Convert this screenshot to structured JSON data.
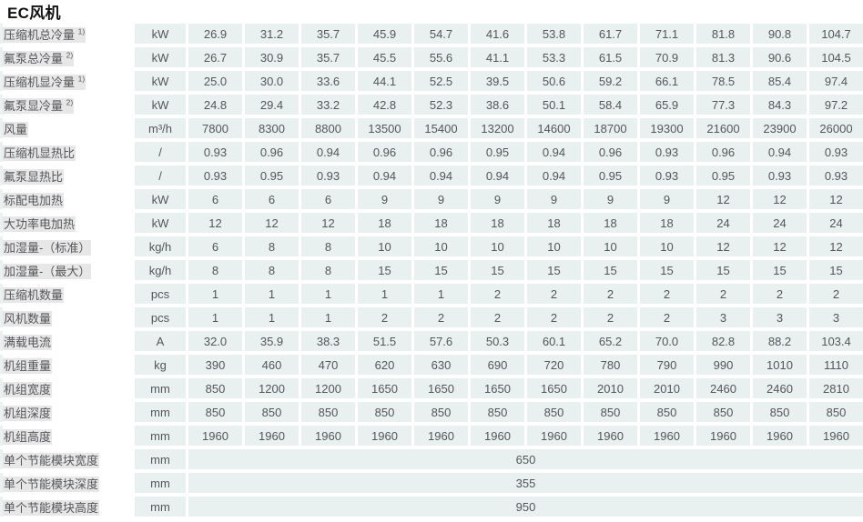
{
  "title": "EC风机",
  "colors": {
    "page_bg": "#ffffff",
    "cell_bg": "#e8f0f0",
    "cell_text": "#54565a",
    "label_text": "#4d4f52",
    "title_text": "#121212",
    "label_matte": "#e7e7e7"
  },
  "table": {
    "column_count": 12,
    "rows": [
      {
        "label": "压缩机总冷量",
        "sup": "1)",
        "unit": "kW",
        "values": [
          "26.9",
          "31.2",
          "35.7",
          "45.9",
          "54.7",
          "41.6",
          "53.8",
          "61.7",
          "71.1",
          "81.8",
          "90.8",
          "104.7"
        ]
      },
      {
        "label": "氟泵总冷量",
        "sup": "2)",
        "unit": "kW",
        "values": [
          "26.7",
          "30.9",
          "35.7",
          "45.5",
          "55.6",
          "41.1",
          "53.3",
          "61.5",
          "70.9",
          "81.3",
          "90.6",
          "104.5"
        ]
      },
      {
        "label": "压缩机显冷量",
        "sup": "1)",
        "unit": "kW",
        "values": [
          "25.0",
          "30.0",
          "33.6",
          "44.1",
          "52.5",
          "39.5",
          "50.6",
          "59.2",
          "66.1",
          "78.5",
          "85.4",
          "97.4"
        ]
      },
      {
        "label": "氟泵显冷量",
        "sup": "2)",
        "unit": "kW",
        "values": [
          "24.8",
          "29.4",
          "33.2",
          "42.8",
          "52.3",
          "38.6",
          "50.1",
          "58.4",
          "65.9",
          "77.3",
          "84.3",
          "97.2"
        ]
      },
      {
        "label": "风量",
        "unit": "m³/h",
        "values": [
          "7800",
          "8300",
          "8800",
          "13500",
          "15400",
          "13200",
          "14600",
          "18700",
          "19300",
          "21600",
          "23900",
          "26000"
        ]
      },
      {
        "label": "压缩机显热比",
        "unit": "/",
        "values": [
          "0.93",
          "0.96",
          "0.94",
          "0.96",
          "0.96",
          "0.95",
          "0.94",
          "0.96",
          "0.93",
          "0.96",
          "0.94",
          "0.93"
        ]
      },
      {
        "label": "氟泵显热比",
        "unit": "/",
        "values": [
          "0.93",
          "0.95",
          "0.93",
          "0.94",
          "0.94",
          "0.94",
          "0.94",
          "0.95",
          "0.93",
          "0.95",
          "0.93",
          "0.93"
        ]
      },
      {
        "label": "标配电加热",
        "unit": "kW",
        "values": [
          "6",
          "6",
          "6",
          "9",
          "9",
          "9",
          "9",
          "9",
          "9",
          "12",
          "12",
          "12"
        ]
      },
      {
        "label": "大功率电加热",
        "unit": "kW",
        "values": [
          "12",
          "12",
          "12",
          "18",
          "18",
          "18",
          "18",
          "18",
          "18",
          "24",
          "24",
          "24"
        ]
      },
      {
        "label": "加湿量-（标准）",
        "unit": "kg/h",
        "values": [
          "6",
          "8",
          "8",
          "10",
          "10",
          "10",
          "10",
          "10",
          "10",
          "12",
          "12",
          "12"
        ]
      },
      {
        "label": "加湿量-（最大）",
        "unit": "kg/h",
        "values": [
          "8",
          "8",
          "8",
          "15",
          "15",
          "15",
          "15",
          "15",
          "15",
          "15",
          "15",
          "15"
        ]
      },
      {
        "label": "压缩机数量",
        "unit": "pcs",
        "values": [
          "1",
          "1",
          "1",
          "1",
          "1",
          "2",
          "2",
          "2",
          "2",
          "2",
          "2",
          "2"
        ]
      },
      {
        "label": "风机数量",
        "unit": "pcs",
        "values": [
          "1",
          "1",
          "1",
          "2",
          "2",
          "2",
          "2",
          "2",
          "2",
          "3",
          "3",
          "3"
        ]
      },
      {
        "label": "满载电流",
        "unit": "A",
        "values": [
          "32.0",
          "35.9",
          "38.3",
          "51.5",
          "57.6",
          "50.3",
          "60.1",
          "65.2",
          "70.0",
          "82.8",
          "88.2",
          "103.4"
        ]
      },
      {
        "label": "机组重量",
        "unit": "kg",
        "values": [
          "390",
          "460",
          "470",
          "620",
          "630",
          "690",
          "720",
          "780",
          "790",
          "990",
          "1010",
          "1110"
        ]
      },
      {
        "label": "机组宽度",
        "unit": "mm",
        "values": [
          "850",
          "1200",
          "1200",
          "1650",
          "1650",
          "1650",
          "1650",
          "2010",
          "2010",
          "2460",
          "2460",
          "2810"
        ]
      },
      {
        "label": "机组深度",
        "unit": "mm",
        "values": [
          "850",
          "850",
          "850",
          "850",
          "850",
          "850",
          "850",
          "850",
          "850",
          "850",
          "850",
          "850"
        ]
      },
      {
        "label": "机组高度",
        "unit": "mm",
        "values": [
          "1960",
          "1960",
          "1960",
          "1960",
          "1960",
          "1960",
          "1960",
          "1960",
          "1960",
          "1960",
          "1960",
          "1960"
        ]
      },
      {
        "label": "单个节能模块宽度",
        "unit": "mm",
        "merged_value": "650"
      },
      {
        "label": "单个节能模块深度",
        "unit": "mm",
        "merged_value": "355"
      },
      {
        "label": "单个节能模块高度",
        "unit": "mm",
        "merged_value": "950"
      }
    ]
  }
}
